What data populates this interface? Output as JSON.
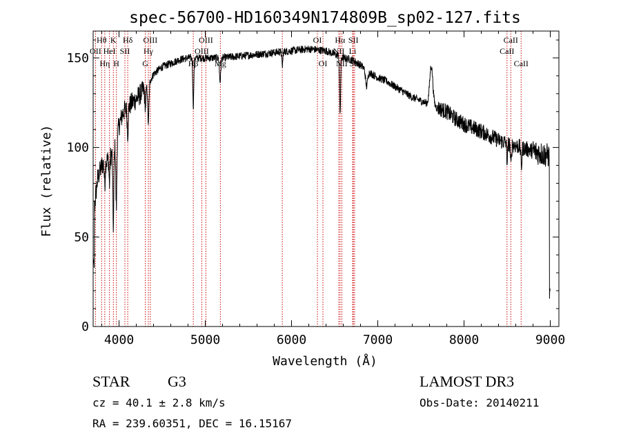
{
  "chart_data": {
    "type": "line",
    "title": "spec-56700-HD160349N174809B_sp02-127.fits",
    "xlabel": "Wavelength (Å)",
    "ylabel": "Flux (relative)",
    "xlim": [
      3700,
      9100
    ],
    "ylim": [
      0,
      165
    ],
    "x_ticks": [
      4000,
      5000,
      6000,
      7000,
      8000,
      9000
    ],
    "x_tick_labels": [
      "4000",
      "5000",
      "6000",
      "7000",
      "8000",
      "9000"
    ],
    "y_ticks": [
      0,
      50,
      100,
      150
    ],
    "y_tick_labels": [
      "0",
      "50",
      "100",
      "150"
    ],
    "line_color": "#000000",
    "marker_color": "#cc0000",
    "grid": false,
    "continuum": [
      [
        3700,
        60
      ],
      [
        3750,
        82
      ],
      [
        3800,
        90
      ],
      [
        3850,
        92
      ],
      [
        3900,
        95
      ],
      [
        3950,
        100
      ],
      [
        4000,
        112
      ],
      [
        4050,
        120
      ],
      [
        4100,
        122
      ],
      [
        4150,
        125
      ],
      [
        4200,
        127
      ],
      [
        4250,
        130
      ],
      [
        4300,
        133
      ],
      [
        4350,
        136
      ],
      [
        4400,
        141
      ],
      [
        4500,
        145
      ],
      [
        4600,
        147
      ],
      [
        4700,
        149
      ],
      [
        4800,
        150
      ],
      [
        5000,
        150
      ],
      [
        5200,
        150
      ],
      [
        5400,
        151
      ],
      [
        5600,
        152
      ],
      [
        5800,
        153
      ],
      [
        6000,
        154
      ],
      [
        6200,
        155
      ],
      [
        6400,
        154
      ],
      [
        6500,
        152
      ],
      [
        6600,
        150
      ],
      [
        6700,
        149
      ],
      [
        6800,
        146
      ],
      [
        6900,
        142
      ],
      [
        7000,
        139
      ],
      [
        7100,
        137
      ],
      [
        7200,
        134
      ],
      [
        7300,
        131
      ],
      [
        7400,
        128
      ],
      [
        7500,
        126
      ],
      [
        7600,
        124
      ],
      [
        7700,
        122
      ],
      [
        7800,
        120
      ],
      [
        7900,
        116
      ],
      [
        8000,
        113
      ],
      [
        8200,
        109
      ],
      [
        8400,
        104
      ],
      [
        8600,
        101
      ],
      [
        8800,
        98
      ],
      [
        9000,
        95
      ]
    ],
    "features": [
      {
        "x": 3934,
        "depth": 42,
        "width": 6
      },
      {
        "x": 3969,
        "depth": 38,
        "width": 6
      },
      {
        "x": 3835,
        "depth": 12,
        "width": 5
      },
      {
        "x": 3889,
        "depth": 15,
        "width": 5
      },
      {
        "x": 4101,
        "depth": 14,
        "width": 6
      },
      {
        "x": 4340,
        "depth": 22,
        "width": 7
      },
      {
        "x": 4305,
        "depth": 12,
        "width": 6
      },
      {
        "x": 4861,
        "depth": 27,
        "width": 6
      },
      {
        "x": 5172,
        "depth": 13,
        "width": 8
      },
      {
        "x": 5893,
        "depth": 8,
        "width": 6
      },
      {
        "x": 6563,
        "depth": 32,
        "width": 6
      },
      {
        "x": 6870,
        "depth": 9,
        "width": 12
      },
      {
        "x": 7620,
        "depth": -22,
        "width": 18
      },
      {
        "x": 8500,
        "depth": 10,
        "width": 6
      },
      {
        "x": 8544,
        "depth": 12,
        "width": 6
      },
      {
        "x": 8665,
        "depth": 11,
        "width": 6
      }
    ],
    "line_markers": [
      {
        "label": "Hθ",
        "x": 3798,
        "row": 0
      },
      {
        "label": "OII",
        "x": 3727,
        "row": 1
      },
      {
        "label": "Hη",
        "x": 3835,
        "row": 2
      },
      {
        "label": "K",
        "x": 3934,
        "row": 0
      },
      {
        "label": "HeI",
        "x": 3889,
        "row": 1
      },
      {
        "label": "H",
        "x": 3969,
        "row": 2
      },
      {
        "label": "Hδ",
        "x": 4101,
        "row": 0
      },
      {
        "label": "SII",
        "x": 4068,
        "row": 1
      },
      {
        "label": "OIII",
        "x": 4363,
        "row": 0
      },
      {
        "label": "Hγ",
        "x": 4340,
        "row": 1
      },
      {
        "label": "G",
        "x": 4305,
        "row": 2
      },
      {
        "label": "OIII",
        "x": 5007,
        "row": 0
      },
      {
        "label": "OIII",
        "x": 4959,
        "row": 1
      },
      {
        "label": "Hβ",
        "x": 4861,
        "row": 2
      },
      {
        "label": "Mg",
        "x": 5175,
        "row": 2
      },
      {
        "label": "Na",
        "x": 5893,
        "row": 1
      },
      {
        "label": "OI",
        "x": 6300,
        "row": 0
      },
      {
        "label": "OI",
        "x": 6364,
        "row": 2
      },
      {
        "label": "Hα",
        "x": 6563,
        "row": 0
      },
      {
        "label": "SII",
        "x": 6717,
        "row": 0
      },
      {
        "label": "NII",
        "x": 6548,
        "row": 1
      },
      {
        "label": "Li",
        "x": 6708,
        "row": 1
      },
      {
        "label": "NII",
        "x": 6583,
        "row": 2
      },
      {
        "label": "SII",
        "x": 6731,
        "row": 2
      },
      {
        "label": "CaII",
        "x": 8542,
        "row": 0
      },
      {
        "label": "CaII",
        "x": 8498,
        "row": 1
      },
      {
        "label": "CaII",
        "x": 8662,
        "row": 2
      }
    ]
  },
  "info": {
    "object_class": "STAR",
    "subclass": "G3",
    "survey": "LAMOST DR3",
    "cz": "cz = 40.1 ± 2.8 km/s",
    "obs_date": "Obs-Date: 20140211",
    "radec": "RA = 239.60351, DEC =  16.15167"
  }
}
